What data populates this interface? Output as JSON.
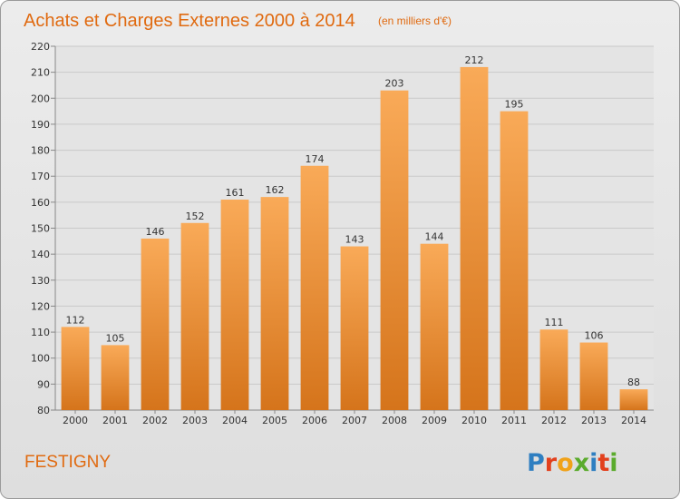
{
  "chart_data": {
    "type": "bar",
    "title": "Achats et Charges Externes 2000 à 2014",
    "subtitle": "(en milliers d'€)",
    "categories": [
      "2000",
      "2001",
      "2002",
      "2003",
      "2004",
      "2005",
      "2006",
      "2007",
      "2008",
      "2009",
      "2010",
      "2011",
      "2012",
      "2013",
      "2014"
    ],
    "values": [
      112,
      105,
      146,
      152,
      161,
      162,
      174,
      143,
      203,
      144,
      212,
      195,
      111,
      106,
      88
    ],
    "ylim": [
      80,
      220
    ],
    "yticks": [
      80,
      90,
      100,
      110,
      120,
      130,
      140,
      150,
      160,
      170,
      180,
      190,
      200,
      210,
      220
    ],
    "grid": true,
    "xlabel": "",
    "ylabel": "",
    "colors": {
      "bar_light": "#f7a553",
      "bar_dark": "#d7761d",
      "title": "#e06a10"
    }
  },
  "footer": {
    "commune": "FESTIGNY",
    "logo_text": "Proxiti"
  }
}
